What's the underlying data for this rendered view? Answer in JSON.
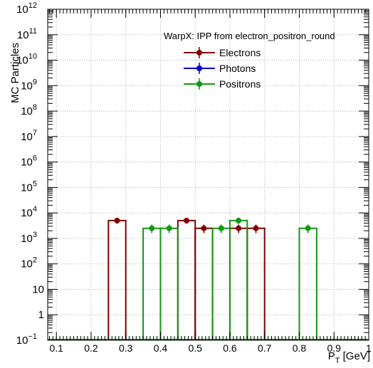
{
  "chart_data": {
    "type": "histogram",
    "title": "",
    "xlabel": "P_T [GeV]",
    "xlabel_main": "P",
    "xlabel_sub": "T",
    "xlabel_unit": " [GeV]",
    "ylabel": "MC Particles",
    "xlim": [
      0.075,
      1.0
    ],
    "ylim_exponent": [
      -1,
      12
    ],
    "yscale": "log",
    "grid": true,
    "x_ticks": [
      "0.1",
      "0.2",
      "0.3",
      "0.4",
      "0.5",
      "0.6",
      "0.7",
      "0.8",
      "0.9",
      "1"
    ],
    "y_ticks": [
      {
        "base": "10",
        "exp": "12"
      },
      {
        "base": "10",
        "exp": "11"
      },
      {
        "base": "10",
        "exp": "10"
      },
      {
        "base": "10",
        "exp": "9"
      },
      {
        "base": "10",
        "exp": "8"
      },
      {
        "base": "10",
        "exp": "7"
      },
      {
        "base": "10",
        "exp": "6"
      },
      {
        "base": "10",
        "exp": "5"
      },
      {
        "base": "10",
        "exp": "4"
      },
      {
        "base": "10",
        "exp": "3"
      },
      {
        "base": "10",
        "exp": "2"
      },
      {
        "base": "10",
        "exp": ""
      },
      {
        "base": "1",
        "exp": ""
      },
      {
        "base": "10",
        "exp": "−1"
      }
    ],
    "legend": {
      "title": "WarpX: IPP from electron_positron_round",
      "placement": "top-right"
    },
    "series": [
      {
        "name": "Electrons",
        "color": "#800000",
        "bins": [
          {
            "x0": 0.25,
            "x1": 0.3,
            "y": 5000
          },
          {
            "x0": 0.45,
            "x1": 0.5,
            "y": 5000
          },
          {
            "x0": 0.5,
            "x1": 0.55,
            "y": 2500
          },
          {
            "x0": 0.6,
            "x1": 0.65,
            "y": 2500
          },
          {
            "x0": 0.65,
            "x1": 0.7,
            "y": 2500
          }
        ]
      },
      {
        "name": "Photons",
        "color": "#0000cc",
        "bins": []
      },
      {
        "name": "Positrons",
        "color": "#119911",
        "bins": [
          {
            "x0": 0.35,
            "x1": 0.4,
            "y": 2500
          },
          {
            "x0": 0.4,
            "x1": 0.45,
            "y": 2500
          },
          {
            "x0": 0.55,
            "x1": 0.6,
            "y": 2500
          },
          {
            "x0": 0.6,
            "x1": 0.65,
            "y": 5000
          },
          {
            "x0": 0.8,
            "x1": 0.85,
            "y": 2500
          }
        ]
      }
    ]
  }
}
